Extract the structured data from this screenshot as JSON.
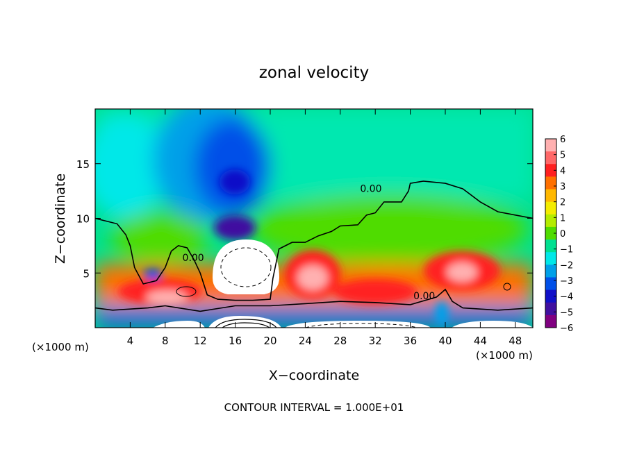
{
  "chart_data": {
    "type": "heatmap",
    "title": "zonal velocity",
    "xlabel": "X−coordinate",
    "ylabel": "Z−coordinate",
    "x_unit_left": "(×1000 m)",
    "x_unit_right": "(×1000 m)",
    "footer": "CONTOUR INTERVAL = 1.000E+01",
    "xlim": [
      0,
      50
    ],
    "ylim": [
      0,
      20
    ],
    "xticks": [
      4,
      8,
      12,
      16,
      20,
      24,
      28,
      32,
      36,
      40,
      44,
      48
    ],
    "yticks": [
      5,
      10,
      15
    ],
    "colorbar": {
      "min": -6,
      "max": 6,
      "labels": [
        "6",
        "5",
        "4",
        "3",
        "2",
        "1",
        "0",
        "−1",
        "−2",
        "−3",
        "−4",
        "−5",
        "−6"
      ],
      "colors": [
        "#ffb0b0",
        "#ff6868",
        "#ff2020",
        "#ff7000",
        "#ffb800",
        "#f4ec00",
        "#b4ec00",
        "#50dc00",
        "#00e090",
        "#00e8e8",
        "#00a0e8",
        "#0050e8",
        "#1010c8",
        "#4010a0",
        "#800080"
      ]
    },
    "contour_labels": [
      {
        "text": "0.00",
        "x": 31.5,
        "y": 12.4
      },
      {
        "text": "0.00",
        "x": 11.2,
        "y": 6.1
      },
      {
        "text": "0.00",
        "x": 37.6,
        "y": 2.6
      }
    ],
    "zero_contour_upper": [
      [
        0,
        10
      ],
      [
        2.5,
        9.5
      ],
      [
        3.5,
        8.5
      ],
      [
        4,
        7.5
      ],
      [
        4.5,
        5.5
      ],
      [
        5.5,
        4
      ],
      [
        7,
        4.3
      ],
      [
        8,
        5.5
      ],
      [
        8.7,
        7
      ],
      [
        9.5,
        7.5
      ],
      [
        10.5,
        7.3
      ],
      [
        11.3,
        6.2
      ],
      [
        12,
        5
      ],
      [
        12.8,
        3
      ],
      [
        14,
        2.6
      ],
      [
        16,
        2.5
      ],
      [
        18,
        2.5
      ],
      [
        20,
        2.6
      ],
      [
        20.3,
        4.5
      ],
      [
        21,
        7.2
      ],
      [
        22.5,
        7.8
      ],
      [
        24,
        7.8
      ],
      [
        25.5,
        8.4
      ],
      [
        27,
        8.8
      ],
      [
        28,
        9.3
      ],
      [
        30,
        9.4
      ],
      [
        31,
        10.3
      ],
      [
        32,
        10.5
      ],
      [
        33,
        11.5
      ],
      [
        35,
        11.5
      ],
      [
        35.8,
        12.5
      ],
      [
        36,
        13.2
      ],
      [
        37.5,
        13.4
      ],
      [
        40,
        13.2
      ],
      [
        42,
        12.7
      ],
      [
        44,
        11.5
      ],
      [
        46,
        10.6
      ],
      [
        48,
        10.3
      ],
      [
        50,
        10
      ]
    ],
    "zero_contour_lower": [
      [
        0,
        1.8
      ],
      [
        2,
        1.6
      ],
      [
        6,
        1.8
      ],
      [
        8,
        2
      ],
      [
        12,
        1.5
      ],
      [
        16,
        2
      ],
      [
        20,
        2
      ],
      [
        24,
        2.2
      ],
      [
        28,
        2.4
      ],
      [
        32,
        2.3
      ],
      [
        36,
        2.1
      ],
      [
        39,
        2.8
      ],
      [
        40,
        3.5
      ],
      [
        40.8,
        2.4
      ],
      [
        42,
        1.8
      ],
      [
        46,
        1.6
      ],
      [
        50,
        1.8
      ]
    ]
  }
}
